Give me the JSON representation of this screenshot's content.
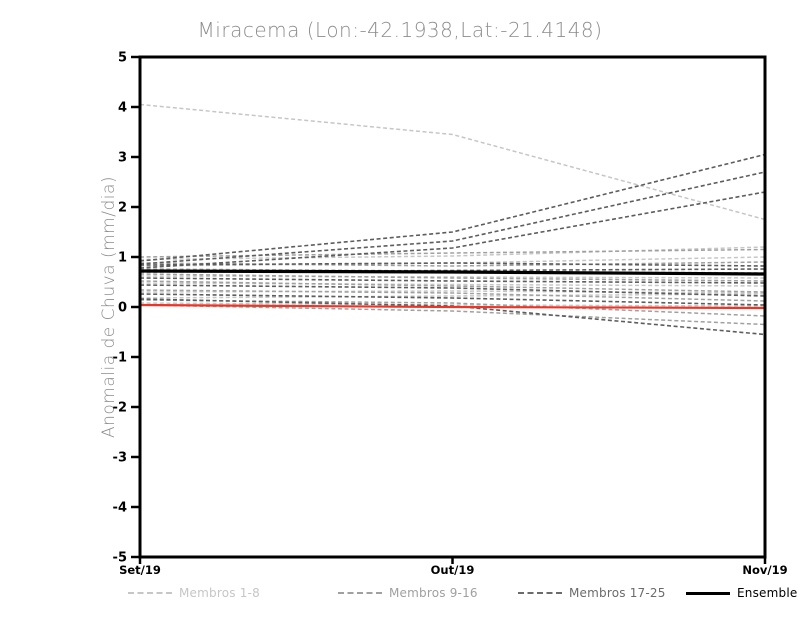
{
  "page": {
    "background": "#ffffff"
  },
  "chart_data": {
    "type": "line",
    "title": "Miracema (Lon:-42.1938,Lat:-21.4148)",
    "ylabel": "Anomalia de Chuva (mm/dia)",
    "x_categories": [
      "Set/19",
      "Out/19",
      "Nov/19"
    ],
    "ylim": [
      -5,
      5
    ],
    "y_ticks": [
      5,
      4,
      3,
      2,
      1,
      0,
      -1,
      -2,
      -3,
      -4,
      -5
    ],
    "grid": false,
    "legend_position": "bottom",
    "groups": {
      "membros_1_8": {
        "label": "Membros 1-8",
        "color": "#c6c6c6",
        "style": "dashed",
        "width": 1.5
      },
      "membros_9_16": {
        "label": "Membros 9-16",
        "color": "#a0a0a0",
        "style": "dashed",
        "width": 1.5
      },
      "membros_17_25": {
        "label": "Membros 17-25",
        "color": "#5d5d5d",
        "style": "dashed",
        "width": 1.6
      },
      "ensemble_mean": {
        "label": "Ensemble Mean",
        "color": "#000000",
        "style": "solid",
        "width": 3.2
      },
      "reference": {
        "label": "",
        "color": "#ee3426",
        "style": "solid",
        "width": 2.2
      }
    },
    "series": [
      {
        "name": "member-1-line",
        "group": "membros_1_8",
        "values": [
          4.05,
          3.45,
          1.75
        ]
      },
      {
        "name": "member-2-line",
        "group": "membros_1_8",
        "values": [
          0.95,
          1.02,
          1.2
        ]
      },
      {
        "name": "member-3-line",
        "group": "membros_1_8",
        "values": [
          0.82,
          0.88,
          1.0
        ]
      },
      {
        "name": "member-4-line",
        "group": "membros_1_8",
        "values": [
          0.62,
          0.6,
          0.58
        ]
      },
      {
        "name": "member-5-line",
        "group": "membros_1_8",
        "values": [
          0.48,
          0.45,
          0.42
        ]
      },
      {
        "name": "member-6-line",
        "group": "membros_1_8",
        "values": [
          0.3,
          0.32,
          0.28
        ]
      },
      {
        "name": "member-7-line",
        "group": "membros_1_8",
        "values": [
          0.18,
          0.22,
          0.26
        ]
      },
      {
        "name": "member-8-line",
        "group": "membros_1_8",
        "values": [
          0.08,
          0.04,
          0.02
        ]
      },
      {
        "name": "member-9-line",
        "group": "membros_9_16",
        "values": [
          1.0,
          1.08,
          1.15
        ]
      },
      {
        "name": "member-10-line",
        "group": "membros_9_16",
        "values": [
          0.88,
          0.82,
          0.9
        ]
      },
      {
        "name": "member-11-line",
        "group": "membros_9_16",
        "values": [
          0.76,
          0.72,
          0.68
        ]
      },
      {
        "name": "member-12-line",
        "group": "membros_9_16",
        "values": [
          0.66,
          0.58,
          0.52
        ]
      },
      {
        "name": "member-13-line",
        "group": "membros_9_16",
        "values": [
          0.52,
          0.42,
          0.3
        ]
      },
      {
        "name": "member-14-line",
        "group": "membros_9_16",
        "values": [
          0.34,
          0.28,
          0.12
        ]
      },
      {
        "name": "member-15-line",
        "group": "membros_9_16",
        "values": [
          0.14,
          0.08,
          -0.18
        ]
      },
      {
        "name": "member-16-line",
        "group": "membros_9_16",
        "values": [
          0.04,
          -0.08,
          -0.35
        ]
      },
      {
        "name": "member-17-line",
        "group": "membros_17_25",
        "values": [
          0.92,
          1.5,
          3.05
        ]
      },
      {
        "name": "member-18-line",
        "group": "membros_17_25",
        "values": [
          0.86,
          1.32,
          2.7
        ]
      },
      {
        "name": "member-19-line",
        "group": "membros_17_25",
        "values": [
          0.78,
          1.18,
          2.3
        ]
      },
      {
        "name": "member-20-line",
        "group": "membros_17_25",
        "values": [
          0.84,
          0.88,
          0.82
        ]
      },
      {
        "name": "member-21-line",
        "group": "membros_17_25",
        "values": [
          0.7,
          0.73,
          0.76
        ]
      },
      {
        "name": "member-22-line",
        "group": "membros_17_25",
        "values": [
          0.58,
          0.52,
          0.48
        ]
      },
      {
        "name": "member-23-line",
        "group": "membros_17_25",
        "values": [
          0.44,
          0.38,
          0.22
        ]
      },
      {
        "name": "member-24-line",
        "group": "membros_17_25",
        "values": [
          0.26,
          0.18,
          0.04
        ]
      },
      {
        "name": "member-25-line",
        "group": "membros_17_25",
        "values": [
          0.16,
          0.02,
          -0.55
        ]
      },
      {
        "name": "ensemble-mean-line",
        "group": "ensemble_mean",
        "values": [
          0.72,
          0.7,
          0.66
        ]
      },
      {
        "name": "zero-reference-line",
        "group": "reference",
        "values": [
          0.04,
          0.0,
          -0.02
        ]
      }
    ],
    "legend": [
      {
        "label": "Membros 1-8",
        "color": "#c6c6c6",
        "style": "dashed"
      },
      {
        "label": "Membros 9-16",
        "color": "#a0a0a0",
        "style": "dashed"
      },
      {
        "label": "Membros 17-25",
        "color": "#6b6b6b",
        "style": "dashed"
      },
      {
        "label": "Ensemble Mean",
        "color": "#000000",
        "style": "solid"
      }
    ]
  }
}
